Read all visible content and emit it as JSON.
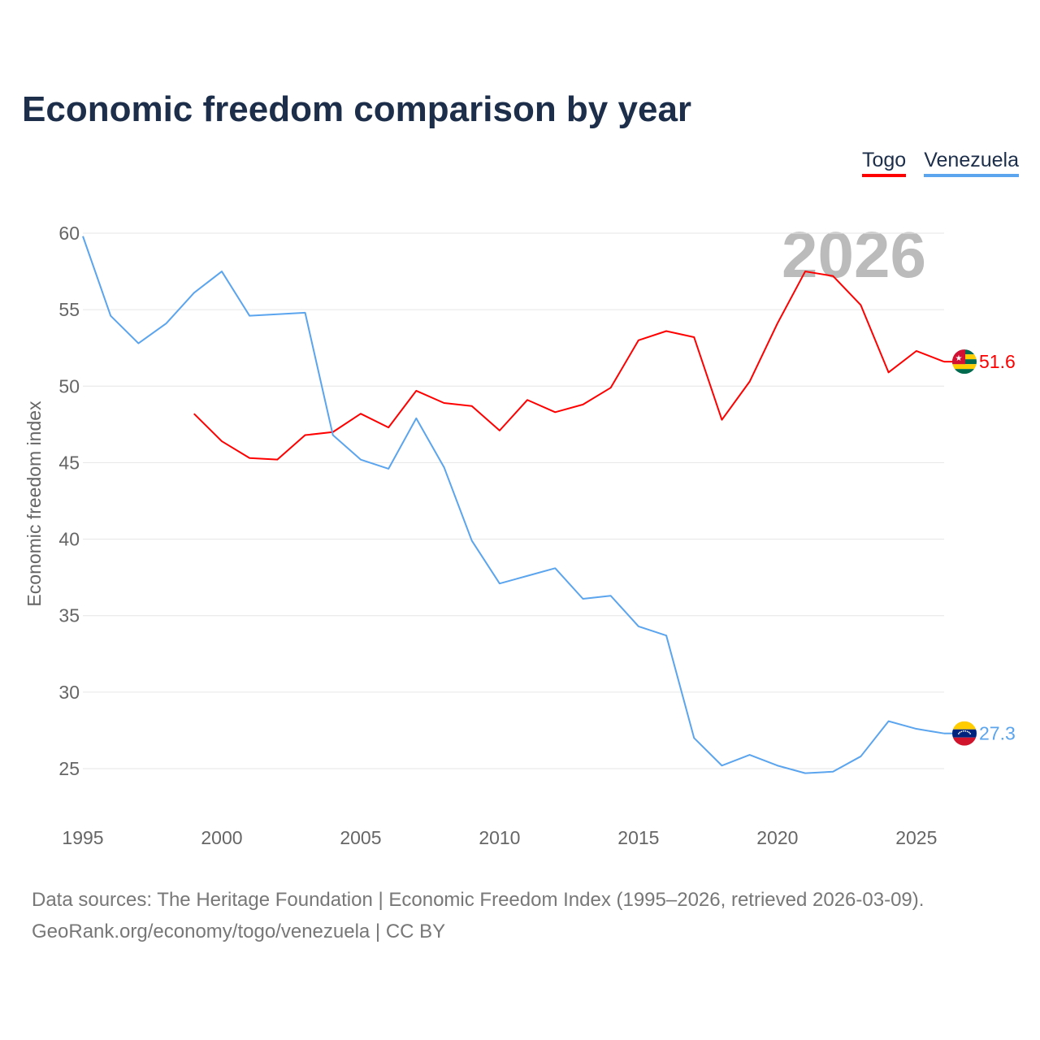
{
  "chart_data": {
    "type": "line",
    "title": "Economic freedom comparison by year",
    "ylabel": "Economic freedom index",
    "xlabel": "",
    "xlim": [
      1995,
      2026
    ],
    "ylim": [
      22,
      60
    ],
    "x_ticks": [
      "1995",
      "2000",
      "2005",
      "2010",
      "2015",
      "2020",
      "2025"
    ],
    "y_ticks": [
      "25",
      "30",
      "35",
      "40",
      "45",
      "50",
      "55",
      "60"
    ],
    "grid": true,
    "legend_position": "top-right",
    "year_watermark": "2026",
    "series": [
      {
        "name": "Togo",
        "color": "#ff0000",
        "end_label": "51.6",
        "x": [
          1999,
          2000,
          2001,
          2002,
          2003,
          2004,
          2005,
          2006,
          2007,
          2008,
          2009,
          2010,
          2011,
          2012,
          2013,
          2014,
          2015,
          2016,
          2017,
          2018,
          2019,
          2020,
          2021,
          2022,
          2023,
          2024,
          2025,
          2026
        ],
        "values": [
          48.2,
          46.4,
          45.3,
          45.2,
          46.8,
          47.0,
          48.2,
          47.3,
          49.7,
          48.9,
          48.7,
          47.1,
          49.1,
          48.3,
          48.8,
          49.9,
          53.0,
          53.6,
          53.2,
          47.8,
          50.3,
          54.1,
          57.5,
          57.2,
          55.3,
          50.9,
          52.3,
          51.6
        ]
      },
      {
        "name": "Venezuela",
        "color": "#5ba4ee",
        "end_label": "27.3",
        "x": [
          1995,
          1996,
          1997,
          1998,
          1999,
          2000,
          2001,
          2002,
          2003,
          2004,
          2005,
          2006,
          2007,
          2008,
          2009,
          2010,
          2011,
          2012,
          2013,
          2014,
          2015,
          2016,
          2017,
          2018,
          2019,
          2020,
          2021,
          2022,
          2023,
          2024,
          2025,
          2026
        ],
        "values": [
          59.8,
          54.6,
          52.8,
          54.1,
          56.1,
          57.5,
          54.6,
          54.7,
          54.8,
          46.8,
          45.2,
          44.6,
          47.9,
          44.7,
          39.9,
          37.1,
          37.6,
          38.1,
          36.1,
          36.3,
          34.3,
          33.7,
          27.0,
          25.2,
          25.9,
          25.2,
          24.7,
          24.8,
          25.8,
          28.1,
          27.6,
          27.3
        ]
      }
    ]
  },
  "source": {
    "line1": "Data sources: The Heritage Foundation | Economic Freedom Index (1995–2026, retrieved 2026-03-09).",
    "line2": "GeoRank.org/economy/togo/venezuela | CC BY"
  }
}
